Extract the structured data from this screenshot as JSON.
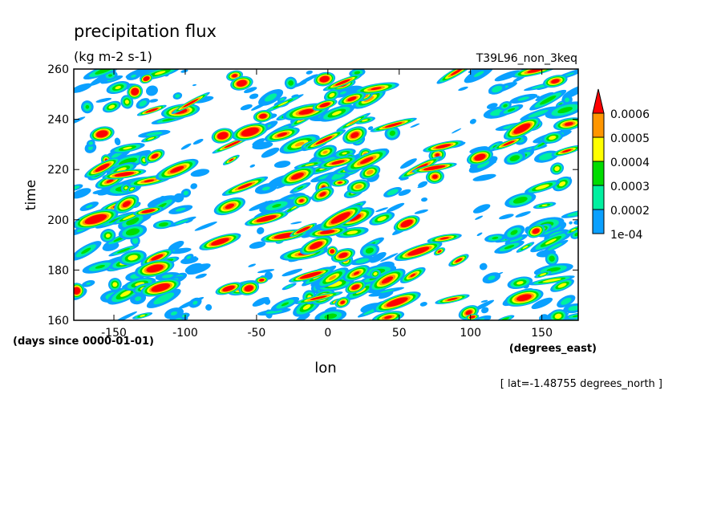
{
  "chart_data": {
    "type": "heatmap",
    "title": "precipitation flux",
    "units": "(kg m-2 s-1)",
    "run_label": "T39L96_non_3keq",
    "xlabel": "lon",
    "x_units": "(degrees_east)",
    "ylabel": "time",
    "y_units": "(days since 0000-01-01)",
    "xlim": [
      -178.125,
      175.5
    ],
    "ylim": [
      160,
      260
    ],
    "x_ticks": [
      {
        "value": -150,
        "label": "-150"
      },
      {
        "value": -100,
        "label": "-100"
      },
      {
        "value": -50,
        "label": "-50"
      },
      {
        "value": 0,
        "label": "0"
      },
      {
        "value": 50,
        "label": "50"
      },
      {
        "value": 100,
        "label": "100"
      },
      {
        "value": 150,
        "label": "150"
      }
    ],
    "y_ticks": [
      {
        "value": 160,
        "label": "160"
      },
      {
        "value": 180,
        "label": "180"
      },
      {
        "value": 200,
        "label": "200"
      },
      {
        "value": 220,
        "label": "220"
      },
      {
        "value": 240,
        "label": "240"
      },
      {
        "value": 260,
        "label": "260"
      }
    ],
    "slice_note": "[ lat=-1.48755 degrees_north ]",
    "grid": false,
    "legend": {
      "placement": "right",
      "levels": [
        {
          "value": 0.0001,
          "label": "1e-04",
          "color": "#0aa0ff"
        },
        {
          "value": 0.0002,
          "label": "0.0002",
          "color": "#00f0a0"
        },
        {
          "value": 0.0003,
          "label": "0.0003",
          "color": "#00dc00"
        },
        {
          "value": 0.0004,
          "label": "0.0004",
          "color": "#ffff00"
        },
        {
          "value": 0.0005,
          "label": "0.0005",
          "color": "#ff9600"
        },
        {
          "value": 0.0006,
          "label": "0.0006",
          "color": "#ff0000"
        }
      ],
      "below_color": "#ffffff"
    }
  }
}
